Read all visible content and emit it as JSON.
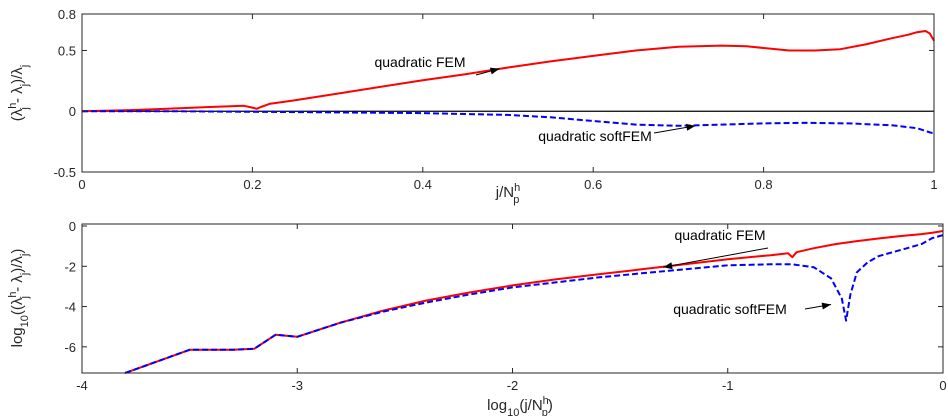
{
  "colors": {
    "fem": "#ff0000",
    "softfem": "#0000ff",
    "axis": "#262626",
    "zero_line": "#000000"
  },
  "chart_data": [
    {
      "type": "line",
      "xlabel": {
        "main": "j/N",
        "sup": "h",
        "sub": "p"
      },
      "ylabel": {
        "text": "(λ",
        "sup1": "h",
        "sub1": "j",
        "mid": " - λ",
        "sub2": "j",
        "close": ")/λ",
        "sub3": "j"
      },
      "xlim": [
        0,
        1
      ],
      "ylim": [
        -0.5,
        0.8
      ],
      "xticks": [
        0,
        0.2,
        0.4,
        0.6,
        0.8,
        1
      ],
      "xtick_labels": [
        "0",
        "0.2",
        "0.4",
        "0.6",
        "0.8",
        "1"
      ],
      "yticks": [
        -0.5,
        0,
        0.5,
        0.8
      ],
      "ytick_labels": [
        "-0.5",
        "0",
        "0.5",
        "0.8"
      ],
      "hline": 0,
      "series": [
        {
          "name": "quadratic FEM",
          "style": "solid",
          "x": [
            0,
            0.05,
            0.1,
            0.15,
            0.19,
            0.2,
            0.205,
            0.21,
            0.22,
            0.25,
            0.3,
            0.35,
            0.4,
            0.45,
            0.5,
            0.55,
            0.6,
            0.65,
            0.7,
            0.75,
            0.78,
            0.8,
            0.83,
            0.86,
            0.89,
            0.92,
            0.95,
            0.97,
            0.98,
            0.99,
            0.995,
            1.0
          ],
          "y": [
            0,
            0.008,
            0.02,
            0.035,
            0.045,
            0.03,
            0.02,
            0.035,
            0.06,
            0.09,
            0.145,
            0.2,
            0.255,
            0.305,
            0.36,
            0.41,
            0.455,
            0.5,
            0.53,
            0.54,
            0.535,
            0.52,
            0.5,
            0.5,
            0.51,
            0.55,
            0.6,
            0.63,
            0.65,
            0.66,
            0.64,
            0.58
          ]
        },
        {
          "name": "quadratic softFEM",
          "style": "dashed",
          "x": [
            0,
            0.1,
            0.2,
            0.3,
            0.4,
            0.5,
            0.55,
            0.6,
            0.65,
            0.7,
            0.75,
            0.8,
            0.85,
            0.9,
            0.95,
            0.98,
            1.0
          ],
          "y": [
            0,
            0.0,
            -0.005,
            -0.01,
            -0.015,
            -0.03,
            -0.05,
            -0.08,
            -0.11,
            -0.12,
            -0.11,
            -0.1,
            -0.095,
            -0.1,
            -0.115,
            -0.14,
            -0.185
          ]
        }
      ],
      "annotations": [
        {
          "text": "quadratic FEM",
          "series": "quadratic FEM",
          "x": 0.49,
          "y": 0.35
        },
        {
          "text": "quadratic softFEM",
          "series": "quadratic softFEM",
          "x": 0.72,
          "y": -0.12
        }
      ]
    },
    {
      "type": "line",
      "xlabel": {
        "pre": "log",
        "sub0": "10",
        "main": "(j/N",
        "sup": "h",
        "sub": "p",
        "close": ")"
      },
      "ylabel": {
        "pre": "log",
        "sub0": "10",
        "text": "((λ",
        "sup1": "h",
        "sub1": "j",
        "mid": " - λ",
        "sub2": "j",
        "close": ")/λ",
        "sub3": "j",
        "end": ")"
      },
      "xlim": [
        -4,
        0
      ],
      "ylim": [
        -7.3,
        0.1
      ],
      "xticks": [
        -4,
        -3,
        -2,
        -1,
        0
      ],
      "xtick_labels": [
        "-4",
        "-3",
        "-2",
        "-1",
        "0"
      ],
      "yticks": [
        -6,
        -4,
        -2,
        0
      ],
      "ytick_labels": [
        "-6",
        "-4",
        "-2",
        "0"
      ],
      "series": [
        {
          "name": "quadratic FEM",
          "style": "solid",
          "x": [
            -3.8,
            -3.5,
            -3.3,
            -3.2,
            -3.1,
            -3.0,
            -2.8,
            -2.6,
            -2.4,
            -2.2,
            -2.0,
            -1.8,
            -1.6,
            -1.4,
            -1.2,
            -1.0,
            -0.8,
            -0.72,
            -0.7,
            -0.68,
            -0.6,
            -0.5,
            -0.4,
            -0.3,
            -0.2,
            -0.1,
            -0.05,
            0.0
          ],
          "y": [
            -7.3,
            -6.15,
            -6.15,
            -6.1,
            -5.4,
            -5.5,
            -4.8,
            -4.2,
            -3.7,
            -3.3,
            -2.95,
            -2.65,
            -2.4,
            -2.15,
            -1.9,
            -1.65,
            -1.45,
            -1.35,
            -1.55,
            -1.3,
            -1.1,
            -0.9,
            -0.75,
            -0.62,
            -0.5,
            -0.4,
            -0.33,
            -0.25
          ]
        },
        {
          "name": "quadratic softFEM",
          "style": "dashed",
          "x": [
            -3.8,
            -3.5,
            -3.3,
            -3.2,
            -3.1,
            -3.0,
            -2.8,
            -2.6,
            -2.4,
            -2.2,
            -2.0,
            -1.8,
            -1.6,
            -1.4,
            -1.2,
            -1.0,
            -0.8,
            -0.7,
            -0.6,
            -0.52,
            -0.47,
            -0.45,
            -0.43,
            -0.4,
            -0.35,
            -0.3,
            -0.2,
            -0.1,
            -0.05,
            0.0
          ],
          "y": [
            -7.3,
            -6.15,
            -6.15,
            -6.1,
            -5.4,
            -5.5,
            -4.8,
            -4.25,
            -3.8,
            -3.4,
            -3.05,
            -2.8,
            -2.55,
            -2.35,
            -2.15,
            -1.95,
            -1.9,
            -1.9,
            -2.05,
            -2.6,
            -3.6,
            -4.7,
            -3.4,
            -2.3,
            -1.8,
            -1.5,
            -1.2,
            -0.9,
            -0.6,
            -0.45
          ]
        }
      ],
      "annotations": [
        {
          "text": "quadratic FEM",
          "series": "quadratic FEM",
          "x": -1.3,
          "y": -2.05
        },
        {
          "text": "quadratic softFEM",
          "series": "quadratic softFEM",
          "x": -0.52,
          "y": -3.9
        }
      ]
    }
  ]
}
